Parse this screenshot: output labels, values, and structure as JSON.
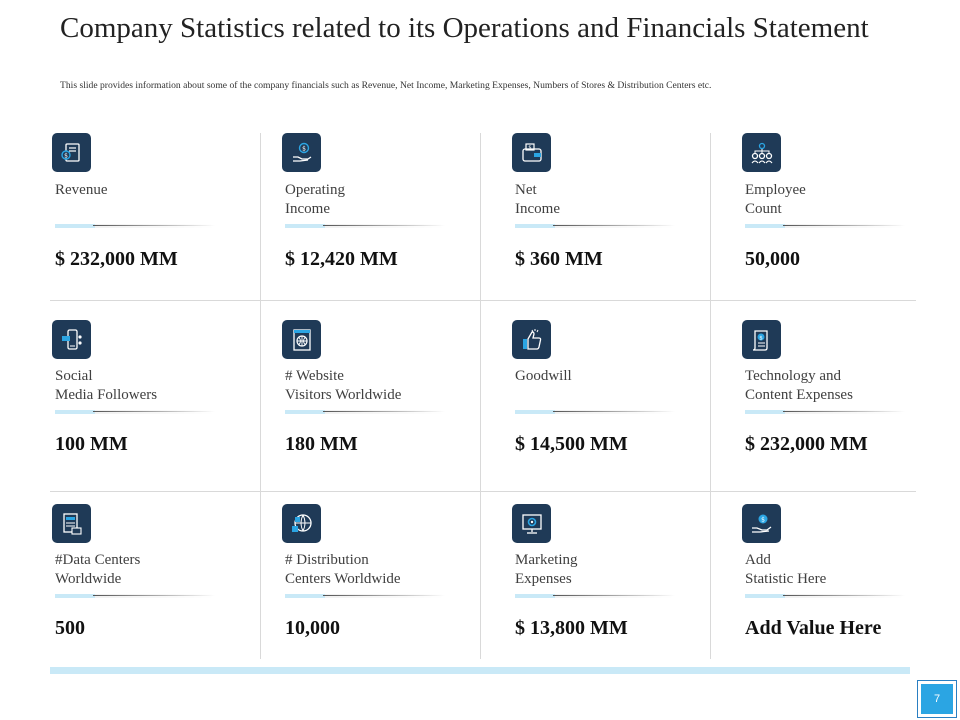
{
  "header": {
    "title": "Company Statistics related to its Operations and Financials Statement",
    "subtitle": "This slide provides information about some of the company financials such as Revenue, Net Income, Marketing Expenses, Numbers of Stores & Distribution Centers etc."
  },
  "stats": [
    {
      "label": "Revenue",
      "value": "$ 232,000 MM",
      "icon": "revenue-icon"
    },
    {
      "label": "Operating\nIncome",
      "value": "$ 12,420 MM",
      "icon": "operating-income-icon"
    },
    {
      "label": "Net\nIncome",
      "value": "$ 360 MM",
      "icon": "wallet-icon"
    },
    {
      "label": "Employee\nCount",
      "value": "50,000",
      "icon": "employees-icon"
    },
    {
      "label": "Social\nMedia Followers",
      "value": "100 MM",
      "icon": "social-media-icon"
    },
    {
      "label": "# Website\nVisitors Worldwide",
      "value": "180 MM",
      "icon": "website-icon"
    },
    {
      "label": "Goodwill",
      "value": "$ 14,500 MM",
      "icon": "thumbs-up-icon"
    },
    {
      "label": "Technology and\nContent Expenses",
      "value": "$ 232,000 MM",
      "icon": "document-dollar-icon"
    },
    {
      "label": "#Data Centers\nWorldwide",
      "value": "500",
      "icon": "server-icon"
    },
    {
      "label": "# Distribution\nCenters Worldwide",
      "value": "10,000",
      "icon": "globe-boxes-icon"
    },
    {
      "label": "Marketing\nExpenses",
      "value": "$ 13,800 MM",
      "icon": "monitor-gear-icon"
    },
    {
      "label": "Add\nStatistic Here",
      "value": "Add Value Here",
      "icon": "hand-coin-icon"
    }
  ],
  "footer": {
    "page_number": "7"
  },
  "colors": {
    "icon_bg": "#1f3a57",
    "accent": "#2ba5e3",
    "accent_light": "#c9e9f7"
  }
}
